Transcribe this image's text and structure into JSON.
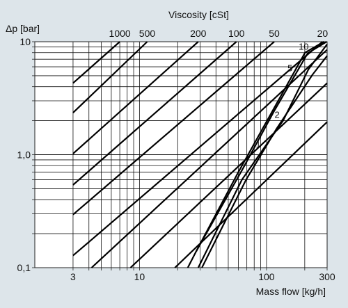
{
  "chart_data": {
    "type": "line",
    "title": "",
    "x_axis": {
      "label": "Mass flow [kg/h]",
      "scale": "log",
      "lim": [
        1.5,
        300
      ],
      "tick_values": [
        3,
        10,
        100,
        300
      ],
      "tick_labels": [
        "3",
        "10",
        "100",
        "300"
      ]
    },
    "y_axis": {
      "label": "Δp [bar]",
      "scale": "log",
      "lim": [
        0.1,
        10
      ],
      "tick_values": [
        0.1,
        1,
        10
      ],
      "tick_labels": [
        "0,1",
        "1,0",
        "10"
      ]
    },
    "top_axis": {
      "label": "Viscosity [cSt]",
      "labels": [
        "1000",
        "500",
        "200",
        "100",
        "50",
        "20"
      ]
    },
    "grid": true,
    "background": "#dde5ea",
    "plot_background": "#ffffff",
    "line_color": "#000000",
    "series": [
      {
        "name": "1000",
        "x": [
          3,
          7.0
        ],
        "y": [
          4.3,
          10
        ]
      },
      {
        "name": "500",
        "x": [
          3,
          11.5
        ],
        "y": [
          2.35,
          10
        ]
      },
      {
        "name": "200",
        "x": [
          3,
          29
        ],
        "y": [
          1.02,
          10
        ]
      },
      {
        "name": "100",
        "x": [
          3,
          58
        ],
        "y": [
          0.54,
          10
        ]
      },
      {
        "name": "50",
        "x": [
          3,
          115
        ],
        "y": [
          0.295,
          10
        ]
      },
      {
        "name": "20",
        "x": [
          3,
          276
        ],
        "y": [
          0.128,
          10
        ]
      },
      {
        "name": "",
        "x": [
          4.2,
          300
        ],
        "y": [
          0.1,
          8.5
        ]
      },
      {
        "name": "",
        "x": [
          8.5,
          300
        ],
        "y": [
          0.1,
          4.3
        ]
      },
      {
        "name": "",
        "x": [
          19,
          300
        ],
        "y": [
          0.1,
          1.95
        ]
      },
      {
        "name": "10",
        "x": [
          28,
          60,
          201,
          283
        ],
        "y": [
          0.14,
          0.7,
          8,
          10
        ]
      },
      {
        "name": "5",
        "x": [
          24,
          28,
          65,
          114,
          211,
          297
        ],
        "y": [
          0.1,
          0.14,
          0.75,
          2.4,
          7.9,
          10
        ]
      },
      {
        "name": "2",
        "x": [
          29,
          64,
          135,
          214,
          300
        ],
        "y": [
          0.1,
          0.6,
          2.0,
          5.7,
          9.5
        ]
      },
      {
        "name": "1",
        "x": [
          31,
          69,
          120,
          230,
          300
        ],
        "y": [
          0.1,
          0.6,
          1.7,
          5.1,
          7.5
        ]
      }
    ]
  }
}
